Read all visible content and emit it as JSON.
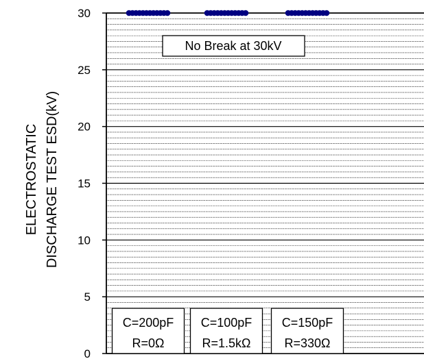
{
  "chart_data": {
    "type": "scatter",
    "title": "",
    "xlabel": "",
    "ylabel_lines": [
      "ELECTROSTATIC",
      "DISCHARGE TEST ESD(kV)"
    ],
    "ylim": [
      0,
      30
    ],
    "yticks": [
      0,
      5,
      10,
      15,
      20,
      25,
      30
    ],
    "minor_gridlines_per_unit": 2,
    "grid": true,
    "annotation": "No Break at 30kV",
    "marker_color": "#000080",
    "groups": [
      {
        "condition": [
          "C=200pF",
          "R=0Ω"
        ],
        "values": [
          30,
          30,
          30,
          30,
          30,
          30,
          30,
          30,
          30,
          30,
          30,
          30
        ]
      },
      {
        "condition": [
          "C=100pF",
          "R=1.5kΩ"
        ],
        "values": [
          30,
          30,
          30,
          30,
          30,
          30,
          30,
          30,
          30,
          30,
          30,
          30
        ]
      },
      {
        "condition": [
          "C=150pF",
          "R=330Ω"
        ],
        "values": [
          30,
          30,
          30,
          30,
          30,
          30,
          30,
          30,
          30,
          30,
          30,
          30
        ]
      }
    ]
  }
}
